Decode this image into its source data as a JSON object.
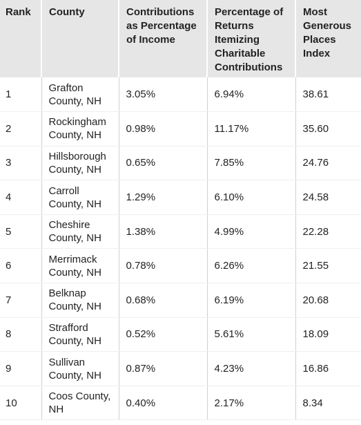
{
  "table": {
    "header": [
      "Rank",
      "County",
      "Contributions as Percentage of Income",
      "Percentage of Returns Itemizing Charitable Contributions",
      "Most Generous Places Index"
    ],
    "rows": [
      [
        "1",
        "Grafton County, NH",
        "3.05%",
        "6.94%",
        "38.61"
      ],
      [
        "2",
        "Rockingham County, NH",
        "0.98%",
        "11.17%",
        "35.60"
      ],
      [
        "3",
        "Hillsborough County, NH",
        "0.65%",
        "7.85%",
        "24.76"
      ],
      [
        "4",
        "Carroll County, NH",
        "1.29%",
        "6.10%",
        "24.58"
      ],
      [
        "5",
        "Cheshire County, NH",
        "1.38%",
        "4.99%",
        "22.28"
      ],
      [
        "6",
        "Merrimack County, NH",
        "0.78%",
        "6.26%",
        "21.55"
      ],
      [
        "7",
        "Belknap County, NH",
        "0.68%",
        "6.19%",
        "20.68"
      ],
      [
        "8",
        "Strafford County, NH",
        "0.52%",
        "5.61%",
        "18.09"
      ],
      [
        "9",
        "Sullivan County, NH",
        "0.87%",
        "4.23%",
        "16.86"
      ],
      [
        "10",
        "Coos County, NH",
        "0.40%",
        "2.17%",
        "8.34"
      ]
    ]
  }
}
